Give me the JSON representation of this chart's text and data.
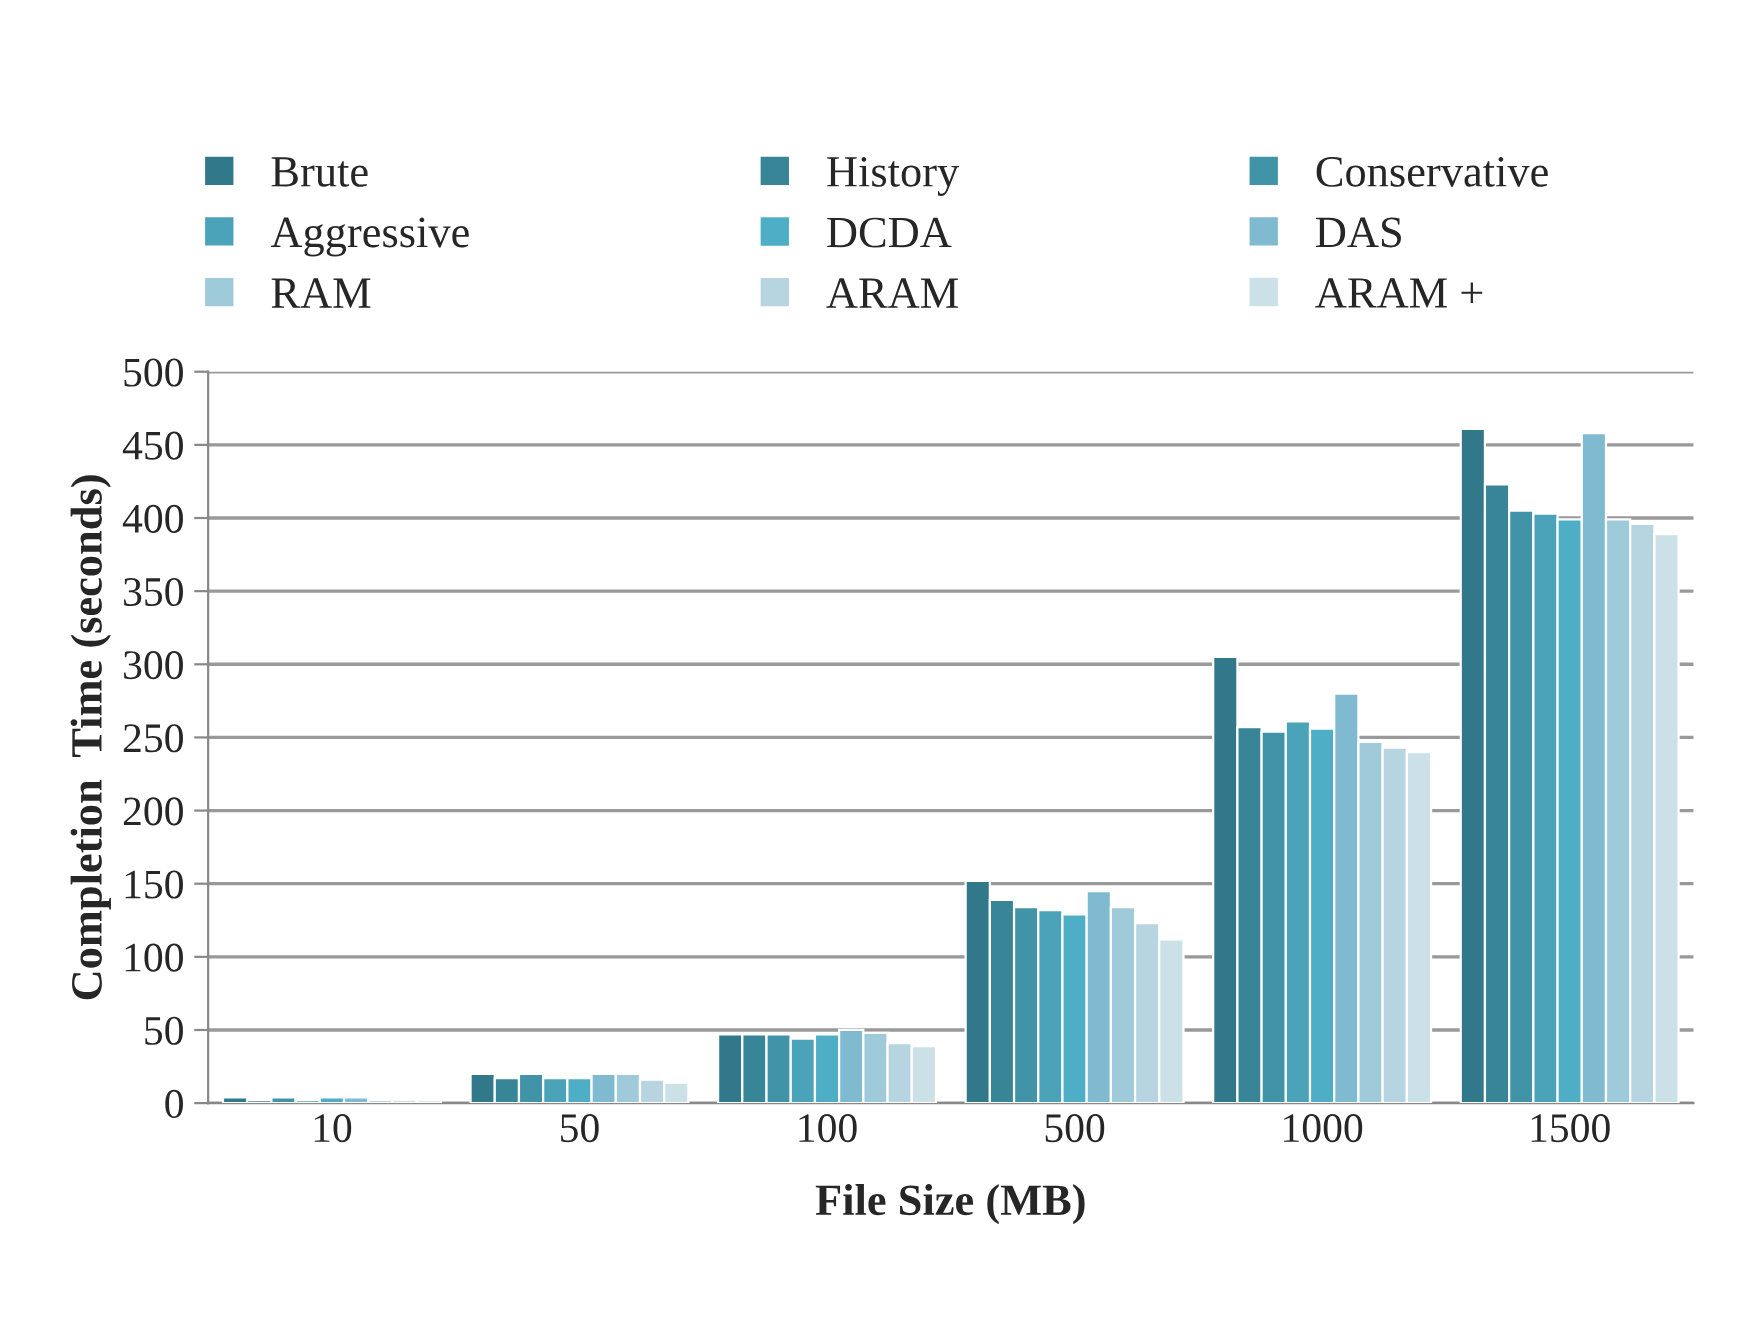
{
  "chart_data": {
    "type": "bar",
    "xlabel": "File Size (MB)",
    "ylabel": "Completion  Time (seconds)",
    "categories": [
      "10",
      "50",
      "100",
      "500",
      "1000",
      "1500"
    ],
    "series": [
      {
        "name": "Brute",
        "color": "#31788a",
        "values": [
          4,
          20,
          47,
          152,
          305,
          461
        ]
      },
      {
        "name": "History",
        "color": "#378597",
        "values": [
          2,
          17,
          47,
          139,
          257,
          423
        ]
      },
      {
        "name": "Conservative",
        "color": "#4193a8",
        "values": [
          4,
          20,
          47,
          134,
          254,
          405
        ]
      },
      {
        "name": "Aggressive",
        "color": "#4aa3b8",
        "values": [
          2,
          17,
          44,
          132,
          261,
          403
        ]
      },
      {
        "name": "DCDA",
        "color": "#4eaec6",
        "values": [
          4,
          17,
          47,
          129,
          256,
          399
        ]
      },
      {
        "name": "DAS",
        "color": "#7fbad0",
        "values": [
          4,
          20,
          50,
          145,
          280,
          458
        ]
      },
      {
        "name": "RAM",
        "color": "#9ecad9",
        "values": [
          2,
          20,
          48,
          134,
          247,
          399
        ]
      },
      {
        "name": "ARAM",
        "color": "#b7d5e1",
        "values": [
          2,
          16,
          41,
          123,
          243,
          396
        ]
      },
      {
        "name": "ARAM +",
        "color": "#cce0e8",
        "values": [
          2,
          14,
          39,
          112,
          240,
          389
        ]
      }
    ],
    "ylim": [
      0,
      500
    ],
    "yticks": [
      0,
      50,
      100,
      150,
      200,
      250,
      300,
      350,
      400,
      450,
      500
    ],
    "grid": "y",
    "legend": "top"
  }
}
